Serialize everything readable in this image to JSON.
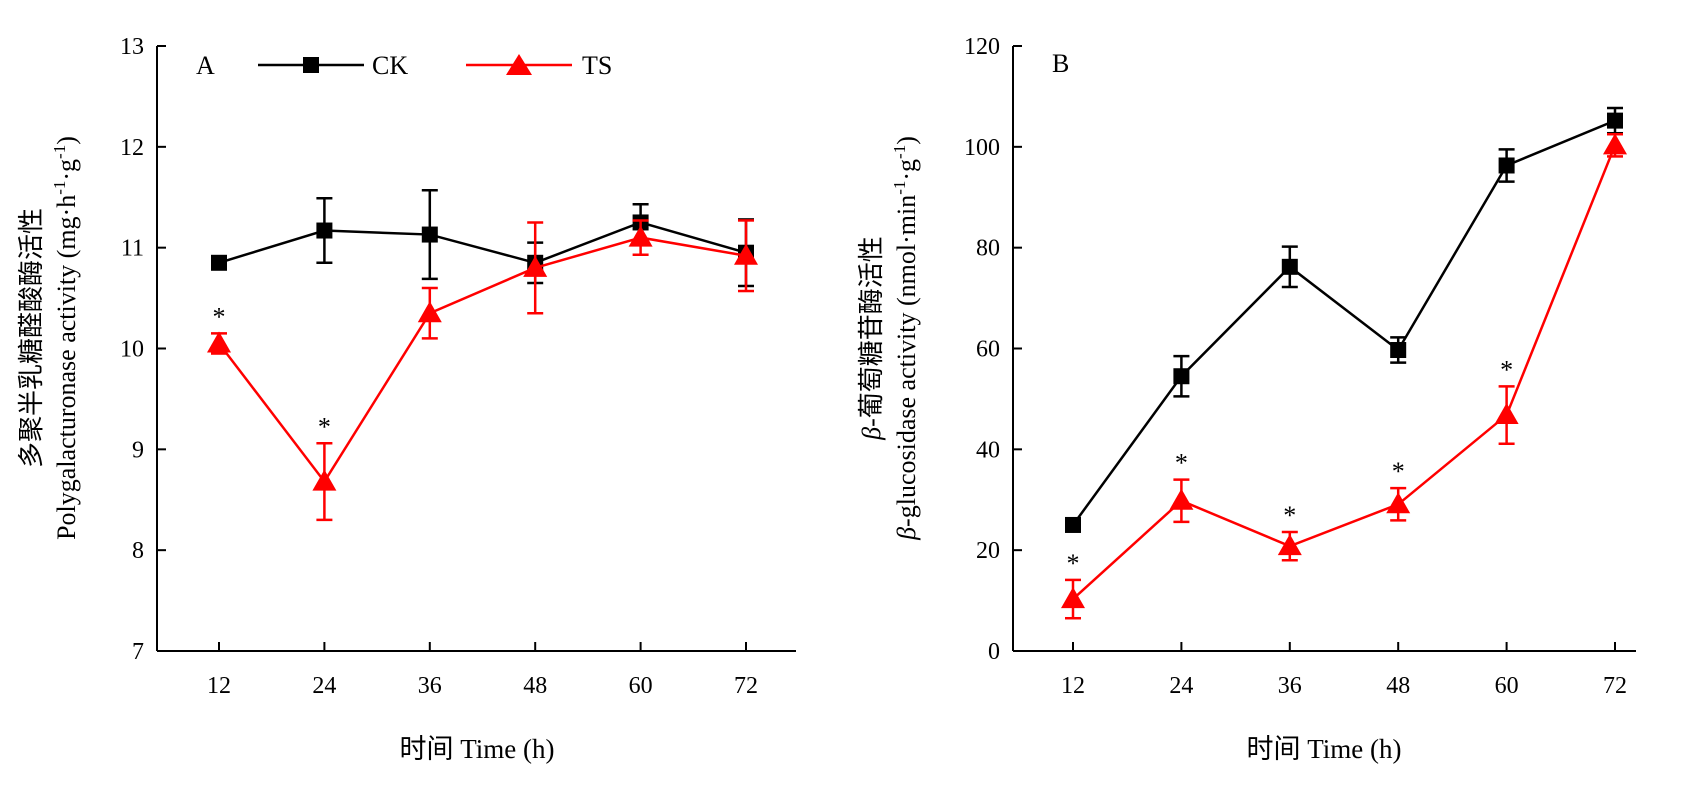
{
  "legend": {
    "ck": "CK",
    "ts": "TS"
  },
  "colors": {
    "ck": "#000000",
    "ts": "#ff0000"
  },
  "chart_data": [
    {
      "type": "line",
      "panel": "A",
      "ylabel_cn": "多聚半乳糖醛酸酶活性",
      "ylabel_en": "Polygalacturonase activity (mg·h",
      "ylabel_unit_tail": "·g",
      "ylabel_sup": "-1",
      "ylabel_close": ")",
      "xlabel": "时间 Time (h)",
      "x": [
        12,
        24,
        36,
        48,
        60,
        72
      ],
      "ylim": [
        7,
        13
      ],
      "yticks": [
        7,
        8,
        9,
        10,
        11,
        12,
        13
      ],
      "series": [
        {
          "name": "CK",
          "marker": "square",
          "values": [
            10.85,
            11.17,
            11.13,
            10.85,
            11.25,
            10.95
          ],
          "errors": [
            0.03,
            0.32,
            0.44,
            0.2,
            0.18,
            0.33
          ]
        },
        {
          "name": "TS",
          "marker": "triangle",
          "values": [
            10.05,
            8.68,
            10.35,
            10.8,
            11.1,
            10.92
          ],
          "errors": [
            0.1,
            0.38,
            0.25,
            0.45,
            0.17,
            0.35
          ],
          "significant": [
            true,
            true,
            false,
            false,
            false,
            false
          ]
        }
      ],
      "annotation": "*"
    },
    {
      "type": "line",
      "panel": "B",
      "ylabel_cn_prefix": "β",
      "ylabel_cn": "-葡萄糖苷酶活性",
      "ylabel_en_prefix": "β",
      "ylabel_en": "-glucosidase activity (nmol·min",
      "ylabel_unit_tail": "·g",
      "ylabel_sup": "-1",
      "ylabel_close": ")",
      "xlabel": "时间 Time (h)",
      "x": [
        12,
        24,
        36,
        48,
        60,
        72
      ],
      "ylim": [
        0,
        120
      ],
      "yticks": [
        0,
        20,
        40,
        60,
        80,
        100,
        120
      ],
      "series": [
        {
          "name": "CK",
          "marker": "square",
          "values": [
            25,
            54.5,
            76.2,
            59.7,
            96.3,
            105.2
          ],
          "errors": [
            1.0,
            4.0,
            4.0,
            2.5,
            3.2,
            2.5
          ]
        },
        {
          "name": "TS",
          "marker": "triangle",
          "values": [
            10.3,
            29.8,
            20.8,
            29.1,
            46.8,
            100.3
          ],
          "errors": [
            3.8,
            4.2,
            2.8,
            3.2,
            5.7,
            2.2
          ],
          "significant": [
            true,
            true,
            true,
            true,
            true,
            false
          ]
        }
      ],
      "annotation": "*"
    }
  ]
}
